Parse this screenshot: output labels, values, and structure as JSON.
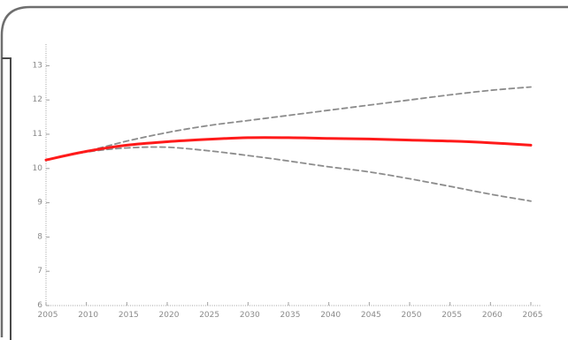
{
  "chart_data": {
    "type": "line",
    "title": "",
    "xlabel": "",
    "ylabel": "",
    "x": [
      2005,
      2010,
      2015,
      2020,
      2025,
      2030,
      2035,
      2040,
      2045,
      2050,
      2055,
      2060,
      2065
    ],
    "x_ticks": [
      "2005",
      "2010",
      "2015",
      "2020",
      "2025",
      "2030",
      "2035",
      "2040",
      "2045",
      "2050",
      "2055",
      "2060",
      "2065"
    ],
    "y_ticks": [
      "6",
      "7",
      "8",
      "9",
      "10",
      "11",
      "12",
      "13"
    ],
    "ylim": [
      6,
      13.5
    ],
    "xlim": [
      2005,
      2065
    ],
    "grid": false,
    "series": [
      {
        "style": "solid",
        "color": "#ff1a1a",
        "values": [
          10.25,
          10.5,
          10.68,
          10.78,
          10.85,
          10.9,
          10.9,
          10.88,
          10.86,
          10.83,
          10.8,
          10.75,
          10.68
        ]
      },
      {
        "style": "dashed",
        "color": "#8c8c8c",
        "values": [
          10.25,
          10.5,
          10.8,
          11.05,
          11.25,
          11.4,
          11.55,
          11.7,
          11.85,
          12.0,
          12.15,
          12.28,
          12.38
        ]
      },
      {
        "style": "dashed",
        "color": "#8c8c8c",
        "values": [
          10.25,
          10.48,
          10.6,
          10.62,
          10.52,
          10.38,
          10.22,
          10.05,
          9.9,
          9.7,
          9.48,
          9.25,
          9.05
        ]
      }
    ]
  }
}
